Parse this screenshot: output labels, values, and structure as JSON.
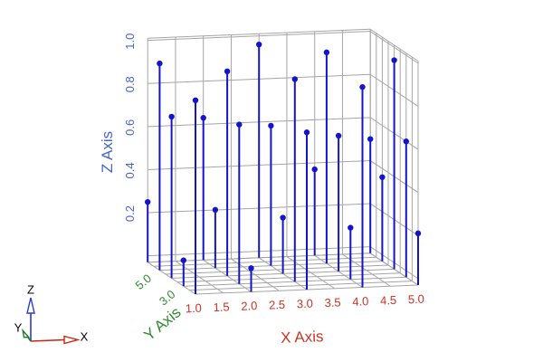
{
  "figure": {
    "background": "#ffffff",
    "grid_color": "#a5a5a5",
    "stem_color": "#1414cc",
    "axes": {
      "x": {
        "title": "X Axis",
        "color": "#cc3326",
        "tick_labels": [
          "1.0",
          "1.5",
          "2.0",
          "2.5",
          "3.0",
          "3.5",
          "4.0",
          "4.5",
          "5.0"
        ],
        "tick_values": [
          1,
          1.5,
          2,
          2.5,
          3,
          3.5,
          4,
          4.5,
          5
        ]
      },
      "y": {
        "title": "Y Axis",
        "color": "#2f8b2f",
        "tick_labels": [
          "5.0",
          "3.0"
        ],
        "tick_values": [
          5,
          3
        ]
      },
      "z": {
        "title": "Z Axis",
        "color": "#4666cb",
        "tick_labels": [
          "0.2",
          "0.4",
          "0.6",
          "0.8",
          "1.0"
        ],
        "tick_values": [
          0.2,
          0.4,
          0.6,
          0.8,
          1.0
        ]
      }
    },
    "orientation_marker": {
      "x_label": "X",
      "y_label": "Y",
      "z_label": "Z",
      "x_color": "#cc2211",
      "y_color": "#1e7a1e",
      "z_color": "#2b3ccc",
      "label_color": "#000000"
    }
  },
  "chart_data": {
    "type": "scatter",
    "subtype": "3d-stem",
    "xlabel": "X Axis",
    "ylabel": "Y Axis",
    "zlabel": "Z Axis",
    "xlim": [
      1,
      5
    ],
    "ylim": [
      1,
      5
    ],
    "zlim": [
      0,
      1
    ],
    "xticks": [
      1,
      1.5,
      2,
      2.5,
      3,
      3.5,
      4,
      4.5,
      5
    ],
    "yticks_labeled": [
      5,
      3
    ],
    "zticks": [
      0.2,
      0.4,
      0.6,
      0.8,
      1.0
    ],
    "grid": true,
    "points": [
      {
        "x": 1,
        "y": 1,
        "z": 0.87
      },
      {
        "x": 1,
        "y": 2,
        "z": 0.09
      },
      {
        "x": 1,
        "y": 3,
        "z": 0.72
      },
      {
        "x": 1,
        "y": 4,
        "z": 0.93
      },
      {
        "x": 1,
        "y": 5,
        "z": 0.25
      },
      {
        "x": 2,
        "y": 1,
        "z": 0.08
      },
      {
        "x": 2,
        "y": 2,
        "z": 0.71
      },
      {
        "x": 2,
        "y": 3,
        "z": 0.92
      },
      {
        "x": 2,
        "y": 4,
        "z": 0.24
      },
      {
        "x": 2,
        "y": 5,
        "z": 0.63
      },
      {
        "x": 3,
        "y": 1,
        "z": 0.7
      },
      {
        "x": 3,
        "y": 2,
        "z": 0.91
      },
      {
        "x": 3,
        "y": 3,
        "z": 0.23
      },
      {
        "x": 3,
        "y": 4,
        "z": 0.62
      },
      {
        "x": 3,
        "y": 5,
        "z": 0.96
      },
      {
        "x": 4,
        "y": 1,
        "z": 0.9
      },
      {
        "x": 4,
        "y": 2,
        "z": 0.21
      },
      {
        "x": 4,
        "y": 3,
        "z": 0.6
      },
      {
        "x": 4,
        "y": 4,
        "z": 0.95
      },
      {
        "x": 4,
        "y": 5,
        "z": 0.37
      },
      {
        "x": 5,
        "y": 1,
        "z": 0.21
      },
      {
        "x": 5,
        "y": 2,
        "z": 0.6
      },
      {
        "x": 5,
        "y": 3,
        "z": 0.94
      },
      {
        "x": 5,
        "y": 4,
        "z": 0.36
      },
      {
        "x": 5,
        "y": 5,
        "z": 0.5
      }
    ]
  }
}
